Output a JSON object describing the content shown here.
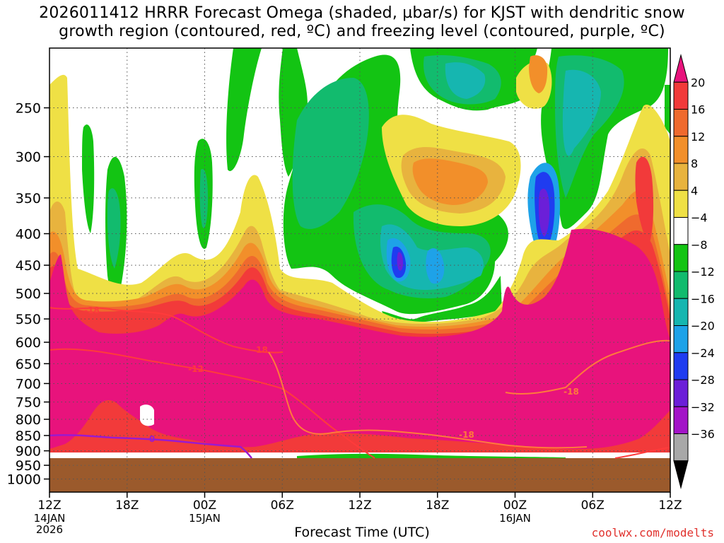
{
  "title_line1": "2026011412 HRRR Forecast Omega (shaded, µbar/s) for KJST with dendritic snow",
  "title_line2": "growth region (contoured, red, ºC) and freezing level (contoured, purple, ºC)",
  "credit": "coolwx.com/modelts",
  "colors": {
    "ground": "#9b5a2c",
    "ground_lines": "#c9864f",
    "dgz_contour": "#ff3b3b",
    "dgz_contour_faded": "#ff7a3b",
    "freezing_contour": "#9a1ad0"
  },
  "chart_data": {
    "type": "heatmap",
    "xlabel": "Forecast Time (UTC)",
    "x_ticks": [
      {
        "hour": 0,
        "label": "12Z",
        "sub1": "14JAN",
        "sub2": "2026"
      },
      {
        "hour": 6,
        "label": "18Z",
        "sub1": "",
        "sub2": ""
      },
      {
        "hour": 12,
        "label": "00Z",
        "sub1": "15JAN",
        "sub2": ""
      },
      {
        "hour": 18,
        "label": "06Z",
        "sub1": "",
        "sub2": ""
      },
      {
        "hour": 24,
        "label": "12Z",
        "sub1": "",
        "sub2": ""
      },
      {
        "hour": 30,
        "label": "18Z",
        "sub1": "",
        "sub2": ""
      },
      {
        "hour": 36,
        "label": "00Z",
        "sub1": "16JAN",
        "sub2": ""
      },
      {
        "hour": 42,
        "label": "06Z",
        "sub1": "",
        "sub2": ""
      },
      {
        "hour": 48,
        "label": "12Z",
        "sub1": "",
        "sub2": ""
      }
    ],
    "x_range_hours": [
      0,
      48
    ],
    "y_ticks": [
      "250",
      "300",
      "350",
      "400",
      "450",
      "500",
      "550",
      "600",
      "650",
      "700",
      "750",
      "800",
      "850",
      "900",
      "950",
      "1000"
    ],
    "y_range_mb": [
      1050,
      200
    ],
    "colorbar": {
      "labels": [
        "20",
        "16",
        "12",
        "8",
        "4",
        "−4",
        "−8",
        "−12",
        "−16",
        "−20",
        "−24",
        "−28",
        "−32",
        "−36"
      ],
      "bins": [
        {
          "color": "#e8137c"
        },
        {
          "color": "#f23a3a"
        },
        {
          "color": "#ef6a2e"
        },
        {
          "color": "#f28f2a"
        },
        {
          "color": "#e8b33e"
        },
        {
          "color": "#efe045"
        },
        {
          "color": "#ffffff"
        },
        {
          "color": "#13c413"
        },
        {
          "color": "#12bb6e"
        },
        {
          "color": "#16b6b0"
        },
        {
          "color": "#1ea2e8"
        },
        {
          "color": "#1f3cf0"
        },
        {
          "color": "#6b1fd8"
        },
        {
          "color": "#a314c8"
        },
        {
          "color": "#a8a8a8"
        },
        {
          "color": "#000000"
        }
      ]
    },
    "contour_labels": {
      "dgz": [
        "-18",
        "-12",
        "-18",
        "-18",
        "-18"
      ],
      "freezing": [
        "0"
      ]
    }
  }
}
